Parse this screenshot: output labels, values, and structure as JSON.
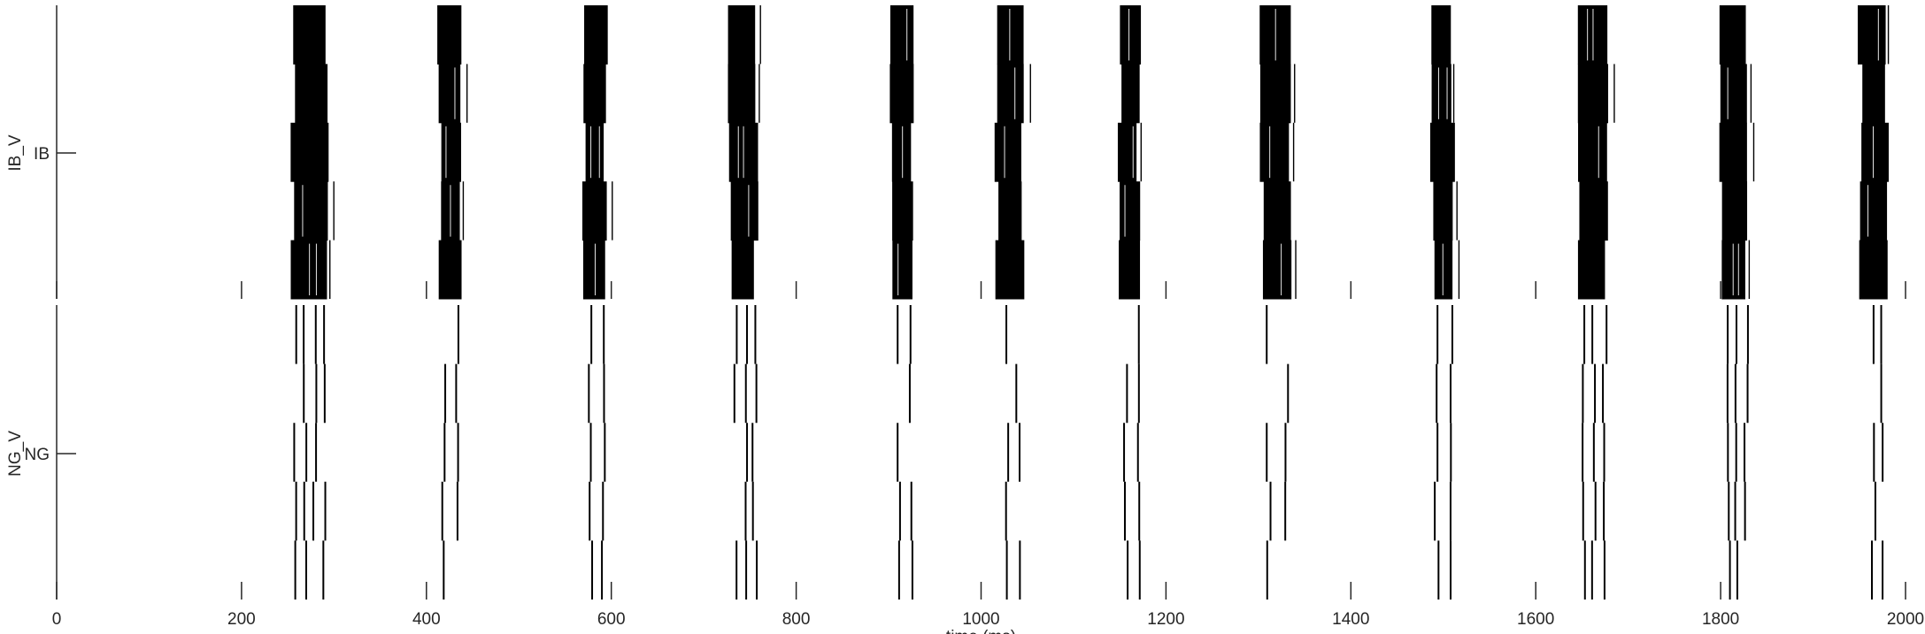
{
  "chart_data": {
    "type": "raster",
    "xlabel": "time (ms)",
    "xlim": [
      0,
      2000
    ],
    "x_ticks": [
      0,
      200,
      400,
      600,
      800,
      1000,
      1200,
      1400,
      1600,
      1800,
      2000
    ],
    "panels": [
      {
        "ylabel": "IB_V",
        "ytick_label": "IB",
        "style": "dense",
        "bursts": [
          {
            "start": 255,
            "end": 292
          },
          {
            "start": 414,
            "end": 438
          },
          {
            "start": 571,
            "end": 594
          },
          {
            "start": 729,
            "end": 757
          },
          {
            "start": 903,
            "end": 927
          },
          {
            "start": 1017,
            "end": 1045
          },
          {
            "start": 1149,
            "end": 1171
          },
          {
            "start": 1303,
            "end": 1334
          },
          {
            "start": 1488,
            "end": 1511
          },
          {
            "start": 1647,
            "end": 1677
          },
          {
            "start": 1799,
            "end": 1828
          },
          {
            "start": 1951,
            "end": 1979
          }
        ]
      },
      {
        "ylabel": "NG_V",
        "ytick_label": "NG",
        "style": "sparse",
        "bursts": [
          {
            "start": 258,
            "end": 290
          },
          {
            "start": 419,
            "end": 434
          },
          {
            "start": 577,
            "end": 592
          },
          {
            "start": 734,
            "end": 755
          },
          {
            "start": 910,
            "end": 925
          },
          {
            "start": 1029,
            "end": 1040
          },
          {
            "start": 1157,
            "end": 1172
          },
          {
            "start": 1311,
            "end": 1330
          },
          {
            "start": 1493,
            "end": 1508
          },
          {
            "start": 1651,
            "end": 1675
          },
          {
            "start": 1808,
            "end": 1828
          },
          {
            "start": 1966,
            "end": 1976
          }
        ]
      }
    ]
  }
}
